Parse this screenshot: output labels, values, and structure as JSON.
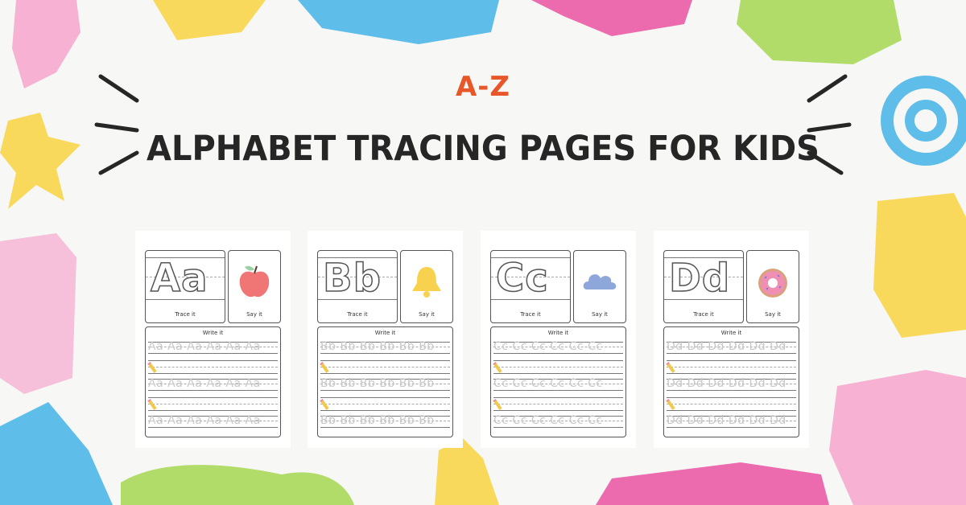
{
  "heading": {
    "kicker": "A-Z",
    "title": "ALPHABET TRACING PAGES FOR KIDS"
  },
  "colors": {
    "kicker": "#e8572a",
    "title": "#262626",
    "background": "#f7f7f5",
    "paint": [
      "#f6a9cf",
      "#f9d54a",
      "#4db6e8",
      "#ea5aa6",
      "#a9d95b"
    ]
  },
  "worksheets": [
    {
      "letters": "Aa",
      "trace_label": "Trace it",
      "say_label": "Say it",
      "picture": "apple-icon",
      "write_label": "Write it",
      "trace_row": "Aa Aa Aa Aa Aa Aa"
    },
    {
      "letters": "Bb",
      "trace_label": "Trace it",
      "say_label": "Say it",
      "picture": "bell-icon",
      "write_label": "Write it",
      "trace_row": "Bb Bb Bb Bb Bb Bb"
    },
    {
      "letters": "Cc",
      "trace_label": "Trace it",
      "say_label": "Say it",
      "picture": "cloud-icon",
      "write_label": "Write it",
      "trace_row": "Cc Cc Cc Cc Cc Cc"
    },
    {
      "letters": "Dd",
      "trace_label": "Trace it",
      "say_label": "Say it",
      "picture": "donut-icon",
      "write_label": "Write it",
      "trace_row": "Dd Dd Dd Dd Dd Dd"
    }
  ]
}
